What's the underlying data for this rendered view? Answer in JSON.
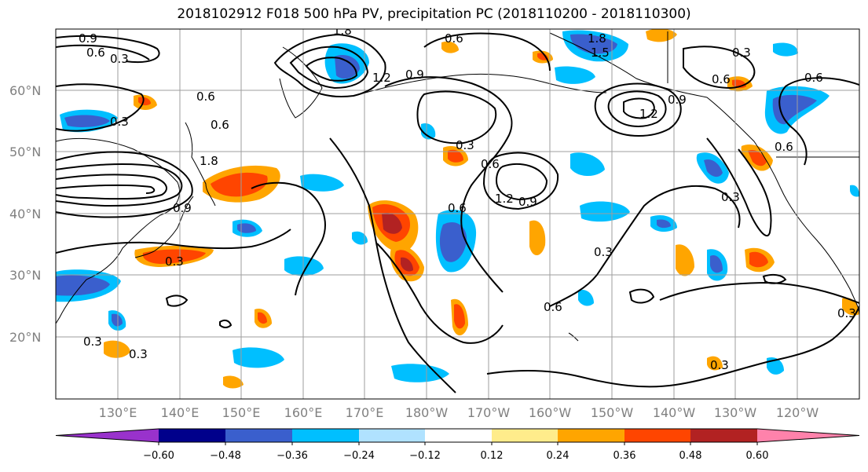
{
  "title": "2018102912 F018 500 hPa PV, precipitation PC (2018110200 - 2018110300)",
  "map": {
    "projection": "equirectangular",
    "lon_range": [
      120,
      250
    ],
    "lat_range": [
      10,
      70
    ],
    "lat_ticks": [
      "20°N",
      "30°N",
      "40°N",
      "50°N",
      "60°N"
    ],
    "lon_ticks": [
      "130°E",
      "140°E",
      "150°E",
      "160°E",
      "170°E",
      "180°W",
      "170°W",
      "160°W",
      "150°W",
      "140°W",
      "130°W",
      "120°W"
    ],
    "contour_labels": [
      "0.3",
      "0.6",
      "0.9",
      "1.2",
      "1.5",
      "1.8"
    ]
  },
  "colorbar": {
    "tick_labels": [
      "−0.60",
      "−0.48",
      "−0.36",
      "−0.24",
      "−0.12",
      "0.12",
      "0.24",
      "0.36",
      "0.48",
      "0.60"
    ],
    "colors": [
      "#9932CC",
      "#00008B",
      "#3A5FCD",
      "#00BFFF",
      "#B0E2FF",
      "#FFFFFF",
      "#FFEC8B",
      "#FFA500",
      "#FF4500",
      "#B22222",
      "#FF82AB"
    ]
  }
}
